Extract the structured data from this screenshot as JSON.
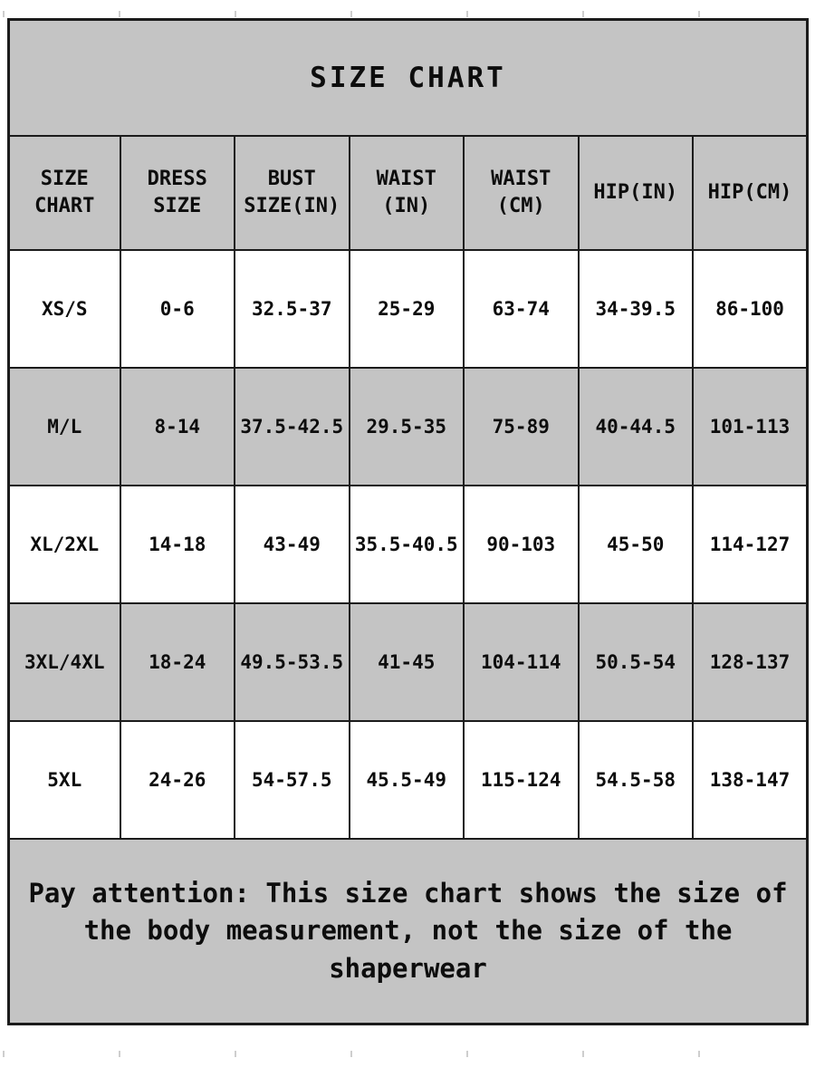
{
  "title": "SIZE CHART",
  "table": {
    "headers": [
      "SIZE CHART",
      "DRESS SIZE",
      "BUST SIZE(IN)",
      "WAIST (IN)",
      "WAIST (CM)",
      "HIP(IN)",
      "HIP(CM)"
    ],
    "rows": [
      [
        "XS/S",
        "0-6",
        "32.5-37",
        "25-29",
        "63-74",
        "34-39.5",
        "86-100"
      ],
      [
        "M/L",
        "8-14",
        "37.5-42.5",
        "29.5-35",
        "75-89",
        "40-44.5",
        "101-113"
      ],
      [
        "XL/2XL",
        "14-18",
        "43-49",
        "35.5-40.5",
        "90-103",
        "45-50",
        "114-127"
      ],
      [
        "3XL/4XL",
        "18-24",
        "49.5-53.5",
        "41-45",
        "104-114",
        "50.5-54",
        "128-137"
      ],
      [
        "5XL",
        "24-26",
        "54-57.5",
        "45.5-49",
        "115-124",
        "54.5-58",
        "138-147"
      ]
    ]
  },
  "note_lines": [
    "Pay attention: This size chart shows the size of",
    "the body measurement, not the size of the",
    "shaperwear"
  ],
  "colors": {
    "band_gray": "#c4c4c4",
    "border_black": "#1b1b1b",
    "text_black": "#0d0d0d",
    "background_white": "#ffffff"
  }
}
